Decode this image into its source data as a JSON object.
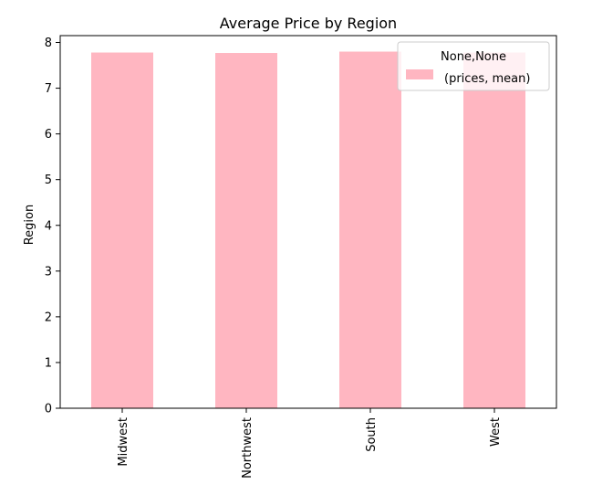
{
  "chart_data": {
    "type": "bar",
    "title": "Average Price by Region",
    "xlabel": "",
    "ylabel": "Region",
    "categories": [
      "Midwest",
      "Northwest",
      "South",
      "West"
    ],
    "series": [
      {
        "name": "(prices, mean)",
        "values": [
          7.78,
          7.77,
          7.8,
          7.78
        ]
      }
    ],
    "ylim": [
      0,
      8.15
    ],
    "yticks": [
      0,
      1,
      2,
      3,
      4,
      5,
      6,
      7,
      8
    ],
    "legend": {
      "title": "None,None",
      "placement": "top-right"
    },
    "grid": false,
    "bar_color": "#ffb6c1"
  }
}
